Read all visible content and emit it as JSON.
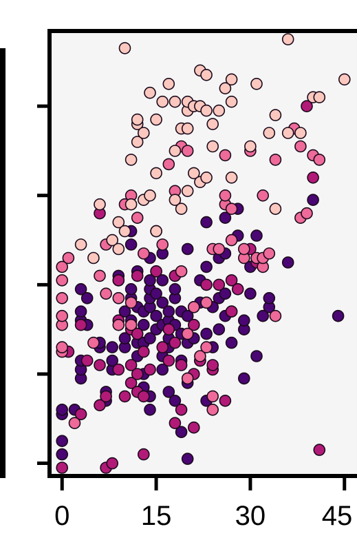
{
  "chart_data": {
    "type": "scatter",
    "title": "",
    "xlabel": "",
    "ylabel": "",
    "xlim": [
      -2,
      47
    ],
    "ylim": [
      0,
      1
    ],
    "xticks": [
      "0",
      "15",
      "30",
      "45"
    ],
    "xtick_values": [
      0,
      15,
      30,
      45
    ],
    "ytick_values": [
      0.03,
      0.23,
      0.43,
      0.63,
      0.83
    ],
    "grid": false,
    "legend": "none",
    "colors": {
      "plot_background": "#f5f5f6",
      "axis": "#000000",
      "point_stroke": "#1a0a1a",
      "dark_purple": "#4a0672",
      "magenta": "#b21a78",
      "pink": "#ee6a99",
      "light_pink": "#fbc8bf"
    },
    "series": [
      {
        "color": "dark_purple",
        "points": [
          [
            0,
            0.05
          ],
          [
            0,
            0.08
          ],
          [
            0,
            0.14
          ],
          [
            0,
            0.15
          ],
          [
            2,
            0.15
          ],
          [
            3,
            0.22
          ],
          [
            3,
            0.24
          ],
          [
            3,
            0.26
          ],
          [
            3,
            0.35
          ],
          [
            3,
            0.37
          ],
          [
            3,
            0.42
          ],
          [
            4,
            0.34
          ],
          [
            4,
            0.4
          ],
          [
            6,
            0.29
          ],
          [
            6,
            0.3
          ],
          [
            7,
            0.17
          ],
          [
            7,
            0.19
          ],
          [
            8,
            0.24
          ],
          [
            8,
            0.26
          ],
          [
            8,
            0.29
          ],
          [
            9,
            0.44
          ],
          [
            9,
            0.45
          ],
          [
            10,
            0.29
          ],
          [
            10,
            0.31
          ],
          [
            10,
            0.37
          ],
          [
            11,
            0.35
          ],
          [
            11,
            0.4
          ],
          [
            11,
            0.42
          ],
          [
            11,
            0.52
          ],
          [
            11,
            0.55
          ],
          [
            12,
            0.27
          ],
          [
            12,
            0.3
          ],
          [
            12,
            0.38
          ],
          [
            12,
            0.46
          ],
          [
            13,
            0.2
          ],
          [
            13,
            0.23
          ],
          [
            13,
            0.3
          ],
          [
            13,
            0.34
          ],
          [
            13,
            0.37
          ],
          [
            14,
            0.15
          ],
          [
            14,
            0.18
          ],
          [
            14,
            0.31
          ],
          [
            14,
            0.38
          ],
          [
            14,
            0.4
          ],
          [
            14,
            0.42
          ],
          [
            14,
            0.44
          ],
          [
            14,
            0.49
          ],
          [
            15,
            0.33
          ],
          [
            15,
            0.36
          ],
          [
            15,
            0.41
          ],
          [
            15,
            0.46
          ],
          [
            16,
            0.24
          ],
          [
            16,
            0.27
          ],
          [
            16,
            0.34
          ],
          [
            16,
            0.39
          ],
          [
            16,
            0.44
          ],
          [
            16,
            0.5
          ],
          [
            17,
            0.19
          ],
          [
            17,
            0.29
          ],
          [
            17,
            0.31
          ],
          [
            17,
            0.35
          ],
          [
            17,
            0.37
          ],
          [
            18,
            0.17
          ],
          [
            18,
            0.34
          ],
          [
            18,
            0.4
          ],
          [
            18,
            0.42
          ],
          [
            18,
            0.45
          ],
          [
            19,
            0.1
          ],
          [
            19,
            0.26
          ],
          [
            19,
            0.32
          ],
          [
            19,
            0.37
          ],
          [
            20,
            0.04
          ],
          [
            20,
            0.21
          ],
          [
            20,
            0.3
          ],
          [
            20,
            0.36
          ],
          [
            20,
            0.51
          ],
          [
            21,
            0.31
          ],
          [
            21,
            0.38
          ],
          [
            22,
            0.26
          ],
          [
            22,
            0.39
          ],
          [
            22,
            0.44
          ],
          [
            23,
            0.17
          ],
          [
            23,
            0.32
          ],
          [
            23,
            0.47
          ],
          [
            23,
            0.57
          ],
          [
            24,
            0.29
          ],
          [
            24,
            0.38
          ],
          [
            25,
            0.33
          ],
          [
            25,
            0.4
          ],
          [
            25,
            0.49
          ],
          [
            26,
            0.36
          ],
          [
            26,
            0.41
          ],
          [
            26,
            0.5
          ],
          [
            26,
            0.58
          ],
          [
            27,
            0.3
          ],
          [
            27,
            0.37
          ],
          [
            28,
            0.54
          ],
          [
            28,
            0.6
          ],
          [
            29,
            0.22
          ],
          [
            29,
            0.33
          ],
          [
            29,
            0.35
          ],
          [
            30,
            0.41
          ],
          [
            30,
            0.47
          ],
          [
            31,
            0.27
          ],
          [
            31,
            0.54
          ],
          [
            32,
            0.36
          ],
          [
            33,
            0.38
          ],
          [
            33,
            0.4
          ],
          [
            36,
            0.48
          ],
          [
            44,
            0.36
          ],
          [
            40,
            0.62
          ]
        ]
      },
      {
        "color": "magenta",
        "points": [
          [
            0,
            0.02
          ],
          [
            1,
            0.28
          ],
          [
            3,
            0.14
          ],
          [
            3,
            0.34
          ],
          [
            4,
            0.26
          ],
          [
            6,
            0.16
          ],
          [
            6,
            0.25
          ],
          [
            6,
            0.59
          ],
          [
            7,
            0.02
          ],
          [
            7,
            0.18
          ],
          [
            8,
            0.03
          ],
          [
            9,
            0.24
          ],
          [
            9,
            0.35
          ],
          [
            9,
            0.44
          ],
          [
            10,
            0.18
          ],
          [
            11,
            0.21
          ],
          [
            11,
            0.25
          ],
          [
            11,
            0.33
          ],
          [
            12,
            0.19
          ],
          [
            12,
            0.23
          ],
          [
            12,
            0.32
          ],
          [
            12,
            0.45
          ],
          [
            13,
            0.18
          ],
          [
            13,
            0.28
          ],
          [
            14,
            0.24
          ],
          [
            15,
            0.46
          ],
          [
            16,
            0.29
          ],
          [
            17,
            0.26
          ],
          [
            17,
            0.33
          ],
          [
            18,
            0.12
          ],
          [
            18,
            0.3
          ],
          [
            18,
            0.45
          ],
          [
            19,
            0.15
          ],
          [
            19,
            0.25
          ],
          [
            21,
            0.11
          ],
          [
            21,
            0.23
          ],
          [
            21,
            0.34
          ],
          [
            22,
            0.26
          ],
          [
            23,
            0.39
          ],
          [
            23,
            0.43
          ],
          [
            24,
            0.24
          ],
          [
            24,
            0.25
          ],
          [
            25,
            0.43
          ],
          [
            26,
            0.17
          ],
          [
            27,
            0.37
          ],
          [
            27,
            0.44
          ],
          [
            28,
            0.42
          ],
          [
            30,
            0.51
          ],
          [
            31,
            0.48
          ],
          [
            41,
            0.06
          ],
          [
            40,
            0.67
          ],
          [
            39,
            0.83
          ],
          [
            13,
            0.05
          ]
        ]
      },
      {
        "color": "pink",
        "points": [
          [
            0,
            0.28
          ],
          [
            0,
            0.29
          ],
          [
            0,
            0.34
          ],
          [
            0,
            0.36
          ],
          [
            0,
            0.4
          ],
          [
            0,
            0.44
          ],
          [
            0,
            0.47
          ],
          [
            1,
            0.49
          ],
          [
            2,
            0.12
          ],
          [
            5,
            0.3
          ],
          [
            6,
            0.45
          ],
          [
            7,
            0.41
          ],
          [
            7,
            0.52
          ],
          [
            9,
            0.34
          ],
          [
            9,
            0.4
          ],
          [
            10,
            0.61
          ],
          [
            11,
            0.34
          ],
          [
            11,
            0.39
          ],
          [
            12,
            0.58
          ],
          [
            13,
            0.5
          ],
          [
            15,
            0.55
          ],
          [
            16,
            0.52
          ],
          [
            19,
            0.46
          ],
          [
            20,
            0.22
          ],
          [
            21,
            0.38
          ],
          [
            22,
            0.27
          ],
          [
            23,
            0.29
          ],
          [
            23,
            0.39
          ],
          [
            24,
            0.15
          ],
          [
            24,
            0.18
          ],
          [
            24,
            0.51
          ],
          [
            25,
            0.51
          ],
          [
            26,
            0.61
          ],
          [
            26,
            0.63
          ],
          [
            27,
            0.53
          ],
          [
            27,
            0.6
          ],
          [
            29,
            0.49
          ],
          [
            29,
            0.51
          ],
          [
            31,
            0.49
          ],
          [
            32,
            0.47
          ],
          [
            32,
            0.49
          ],
          [
            32,
            0.63
          ],
          [
            33,
            0.5
          ],
          [
            34,
            0.36
          ],
          [
            38,
            0.58
          ],
          [
            39,
            0.59
          ],
          [
            20,
            0.32
          ],
          [
            11,
            0.63
          ],
          [
            18,
            0.64
          ],
          [
            17,
            0.7
          ],
          [
            19,
            0.74
          ],
          [
            20,
            0.73
          ],
          [
            26,
            0.72
          ],
          [
            30,
            0.73
          ],
          [
            34,
            0.71
          ],
          [
            37,
            0.78
          ],
          [
            38,
            0.74
          ],
          [
            40,
            0.72
          ],
          [
            41,
            0.71
          ]
        ]
      },
      {
        "color": "light_pink",
        "points": [
          [
            3,
            0.52
          ],
          [
            5,
            0.49
          ],
          [
            6,
            0.61
          ],
          [
            8,
            0.53
          ],
          [
            9,
            0.57
          ],
          [
            11,
            0.61
          ],
          [
            12,
            0.79
          ],
          [
            12,
            0.8
          ],
          [
            14,
            0.86
          ],
          [
            15,
            0.8
          ],
          [
            16,
            0.84
          ],
          [
            17,
            0.88
          ],
          [
            18,
            0.84
          ],
          [
            18,
            0.73
          ],
          [
            19,
            0.78
          ],
          [
            20,
            0.78
          ],
          [
            20,
            0.82
          ],
          [
            20,
            0.84
          ],
          [
            21,
            0.83
          ],
          [
            22,
            0.83
          ],
          [
            22,
            0.91
          ],
          [
            23,
            0.9
          ],
          [
            23,
            0.82
          ],
          [
            24,
            0.79
          ],
          [
            25,
            0.82
          ],
          [
            26,
            0.87
          ],
          [
            27,
            0.84
          ],
          [
            27,
            0.89
          ],
          [
            30,
            0.74
          ],
          [
            31,
            0.88
          ],
          [
            33,
            0.77
          ],
          [
            34,
            0.81
          ],
          [
            36,
            0.77
          ],
          [
            38,
            0.77
          ],
          [
            40,
            0.85
          ],
          [
            41,
            0.85
          ],
          [
            45,
            0.89
          ],
          [
            11,
            0.71
          ],
          [
            12,
            0.75
          ],
          [
            13,
            0.77
          ],
          [
            15,
            0.68
          ],
          [
            18,
            0.62
          ],
          [
            20,
            0.64
          ],
          [
            21,
            0.68
          ],
          [
            22,
            0.66
          ],
          [
            23,
            0.67
          ],
          [
            19,
            0.6
          ],
          [
            15,
            0.55
          ],
          [
            10,
            0.55
          ],
          [
            10,
            0.96
          ],
          [
            24,
            0.74
          ],
          [
            27,
            0.67
          ],
          [
            34,
            0.6
          ],
          [
            36,
            0.98
          ],
          [
            13,
            0.62
          ],
          [
            14,
            0.63
          ],
          [
            9,
            0.51
          ]
        ]
      }
    ]
  }
}
